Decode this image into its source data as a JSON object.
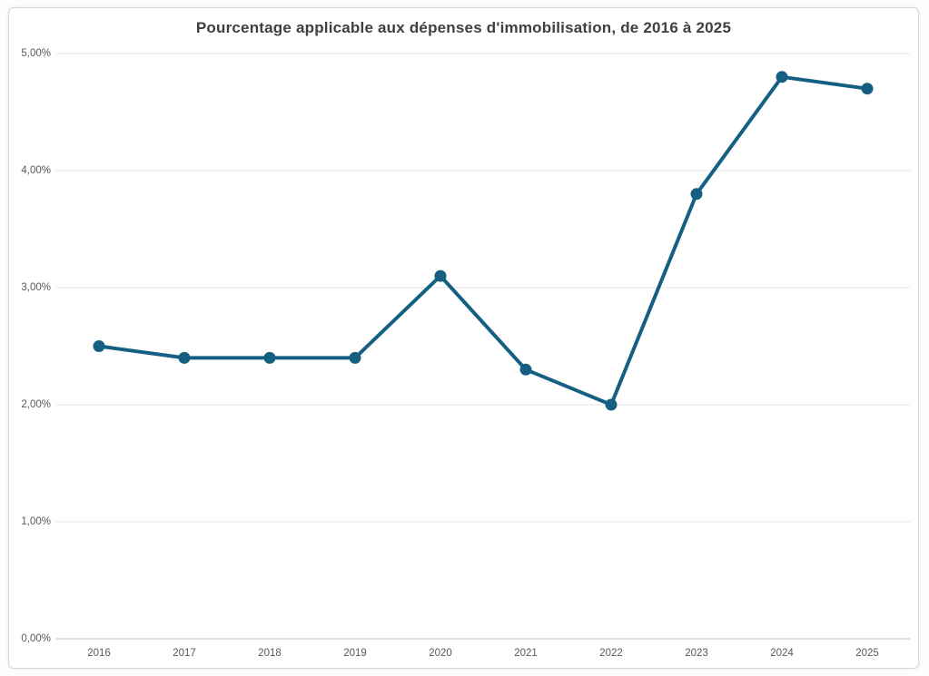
{
  "chart_data": {
    "type": "line",
    "title": "Pourcentage applicable aux dépenses d'immobilisation, de 2016 à 2025",
    "categories": [
      "2016",
      "2017",
      "2018",
      "2019",
      "2020",
      "2021",
      "2022",
      "2023",
      "2024",
      "2025"
    ],
    "series": [
      {
        "name": "Pourcentage applicable aux dépenses d'immobilisation",
        "values": [
          2.5,
          2.4,
          2.4,
          2.4,
          3.1,
          2.3,
          2.0,
          3.8,
          4.8,
          4.7
        ]
      }
    ],
    "xlabel": "",
    "ylabel": "",
    "ylim": [
      0,
      5
    ],
    "ytick_step": 1,
    "ytick_labels": [
      "0,00%",
      "1,00%",
      "2,00%",
      "3,00%",
      "4,00%",
      "5,00%"
    ],
    "grid": "horizontal",
    "legend": "none",
    "colors": {
      "line": "#156082",
      "marker": "#156082",
      "title": "#3f3f3f",
      "tick_label": "#595959",
      "gridline": "#e3e3e3",
      "axis_line": "#bfbfbf",
      "frame_border": "#d7d7d7",
      "background": "#ffffff"
    },
    "marker_radius": 6.5,
    "line_width": 4
  }
}
